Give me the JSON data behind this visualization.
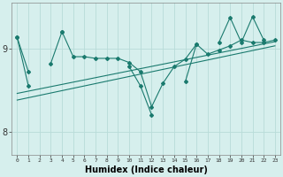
{
  "background_color": "#d6efed",
  "grid_color": "#b8dbd8",
  "line_color": "#1a7a6e",
  "xlabel": "Humidex (Indice chaleur)",
  "xlabel_fontsize": 7,
  "ytick_values": [
    8,
    9
  ],
  "ytick_labels": [
    "8",
    "9"
  ],
  "xlim": [
    -0.5,
    23.5
  ],
  "ylim": [
    7.72,
    9.55
  ],
  "x_values": [
    0,
    1,
    2,
    3,
    4,
    5,
    6,
    7,
    8,
    9,
    10,
    11,
    12,
    13,
    14,
    15,
    16,
    17,
    18,
    19,
    20,
    21,
    22,
    23
  ],
  "line1_y": [
    9.13,
    8.72,
    null,
    8.82,
    9.2,
    8.9,
    8.9,
    8.88,
    8.88,
    8.88,
    8.83,
    8.72,
    8.3,
    8.58,
    8.78,
    8.87,
    9.05,
    8.93,
    8.98,
    9.03,
    9.1,
    9.07,
    9.07,
    9.1
  ],
  "line2_y": [
    9.13,
    8.55,
    null,
    null,
    9.2,
    null,
    null,
    null,
    null,
    null,
    8.78,
    8.55,
    8.2,
    null,
    null,
    8.6,
    9.05,
    null,
    9.07,
    9.37,
    9.07,
    9.38,
    9.1,
    null
  ],
  "trend1_x": [
    0,
    23
  ],
  "trend1_y": [
    8.46,
    9.08
  ],
  "trend2_x": [
    0,
    23
  ],
  "trend2_y": [
    8.38,
    9.03
  ]
}
